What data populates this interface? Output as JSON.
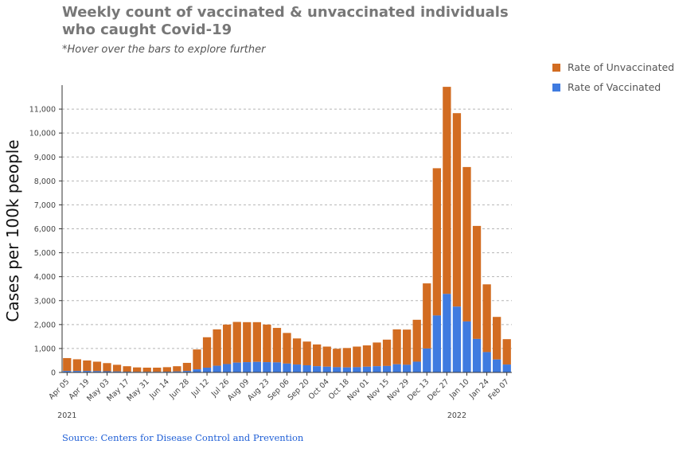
{
  "title": "Weekly count of vaccinated & unvaccinated individuals who caught Covid-19",
  "subtitle": "*Hover over the bars to explore further",
  "source": "Source: Centers for Disease Control and Prevention",
  "chart_data": {
    "type": "bar",
    "stacked": true,
    "title": "Weekly count of vaccinated & unvaccinated individuals who caught Covid-19",
    "xlabel": "",
    "ylabel": "Cases per 100k people",
    "ylim": [
      0,
      12000
    ],
    "yticks": [
      0,
      1000,
      2000,
      3000,
      4000,
      5000,
      6000,
      7000,
      8000,
      9000,
      10000,
      11000
    ],
    "ytick_labels": [
      "0",
      "1,000",
      "2,000",
      "3,000",
      "4,000",
      "5,000",
      "6,000",
      "7,000",
      "8,000",
      "9,000",
      "10,000",
      "11,000"
    ],
    "grid": "horizontal dashed",
    "legend_position": "top-right",
    "categories": [
      "2021-04-05",
      "2021-04-12",
      "2021-04-19",
      "2021-04-26",
      "2021-05-03",
      "2021-05-10",
      "2021-05-17",
      "2021-05-24",
      "2021-05-31",
      "2021-06-07",
      "2021-06-14",
      "2021-06-21",
      "2021-06-28",
      "2021-07-05",
      "2021-07-12",
      "2021-07-19",
      "2021-07-26",
      "2021-08-02",
      "2021-08-09",
      "2021-08-16",
      "2021-08-23",
      "2021-08-30",
      "2021-09-06",
      "2021-09-13",
      "2021-09-20",
      "2021-09-27",
      "2021-10-04",
      "2021-10-11",
      "2021-10-18",
      "2021-10-25",
      "2021-11-01",
      "2021-11-08",
      "2021-11-15",
      "2021-11-22",
      "2021-11-29",
      "2021-12-06",
      "2021-12-13",
      "2021-12-20",
      "2021-12-27",
      "2022-01-03",
      "2022-01-10",
      "2022-01-17",
      "2022-01-24",
      "2022-01-31",
      "2022-02-07"
    ],
    "x_tick_labels": [
      "Apr 05",
      "Apr 19",
      "May 03",
      "May 17",
      "May 31",
      "Jun 14",
      "Jun 28",
      "Jul 12",
      "Jul 26",
      "Aug 09",
      "Aug 23",
      "Sep 06",
      "Sep 20",
      "Oct 04",
      "Oct 18",
      "Nov 01",
      "Nov 15",
      "Nov 29",
      "Dec 13",
      "Dec 27",
      "Jan 10",
      "Jan 24",
      "Feb 07"
    ],
    "year_labels": [
      {
        "label": "2021",
        "at": "2021-04-05"
      },
      {
        "label": "2022",
        "at": "2022-01-03"
      }
    ],
    "series": [
      {
        "name": "Rate of Vaccinated",
        "color": "#3f7be0",
        "values": [
          60,
          60,
          60,
          55,
          50,
          40,
          30,
          25,
          25,
          25,
          30,
          40,
          60,
          130,
          200,
          280,
          350,
          410,
          430,
          440,
          430,
          420,
          370,
          330,
          300,
          260,
          240,
          220,
          210,
          220,
          240,
          260,
          270,
          340,
          320,
          450,
          1000,
          2380,
          3280,
          2750,
          2130,
          1400,
          850,
          540,
          330
        ]
      },
      {
        "name": "Rate of Unvaccinated",
        "color": "#d26c21",
        "values": [
          540,
          490,
          440,
          395,
          340,
          280,
          230,
          185,
          175,
          175,
          190,
          220,
          340,
          830,
          1270,
          1520,
          1650,
          1700,
          1670,
          1660,
          1570,
          1440,
          1280,
          1090,
          990,
          910,
          840,
          770,
          810,
          860,
          890,
          990,
          1100,
          1460,
          1470,
          1750,
          2720,
          6150,
          8650,
          8080,
          6450,
          4720,
          2830,
          1780,
          1060
        ]
      }
    ]
  }
}
